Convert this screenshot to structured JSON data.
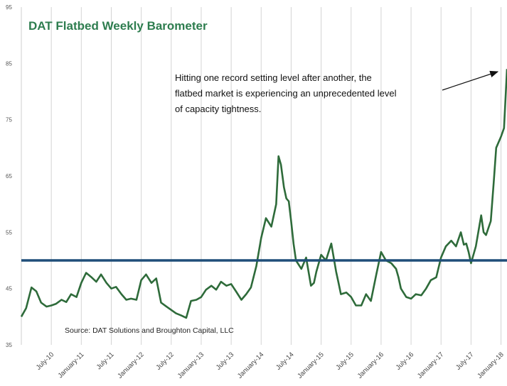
{
  "chart_data": {
    "type": "line",
    "title": "DAT Flatbed Weekly Barometer",
    "xlabel": "",
    "ylabel": "",
    "ylim": [
      35,
      95
    ],
    "yticks": [
      35,
      45,
      55,
      65,
      75,
      85,
      95
    ],
    "grid": "vertical",
    "categories": [
      "July-10",
      "January-11",
      "July-11",
      "January-12",
      "July-12",
      "January-13",
      "July-13",
      "January-14",
      "July-14",
      "January-15",
      "July-15",
      "January-16",
      "July-16",
      "January-17",
      "July-17",
      "January-18"
    ],
    "reference_line": {
      "value": 50,
      "color": "#1f4e79"
    },
    "series": [
      {
        "color": "#2e6b3a",
        "x": [
          2010.0,
          2010.08,
          2010.17,
          2010.25,
          2010.33,
          2010.42,
          2010.5,
          2010.58,
          2010.67,
          2010.75,
          2010.83,
          2010.92,
          2011.0,
          2011.08,
          2011.17,
          2011.25,
          2011.33,
          2011.42,
          2011.5,
          2011.58,
          2011.67,
          2011.75,
          2011.83,
          2011.92,
          2012.0,
          2012.08,
          2012.17,
          2012.25,
          2012.33,
          2012.42,
          2012.5,
          2012.58,
          2012.67,
          2012.75,
          2012.83,
          2012.92,
          2013.0,
          2013.08,
          2013.17,
          2013.25,
          2013.33,
          2013.42,
          2013.5,
          2013.58,
          2013.67,
          2013.75,
          2013.83,
          2013.92,
          2014.0,
          2014.08,
          2014.17,
          2014.25,
          2014.29,
          2014.33,
          2014.38,
          2014.42,
          2014.46,
          2014.5,
          2014.54,
          2014.58,
          2014.67,
          2014.75,
          2014.83,
          2014.88,
          2014.92,
          2015.0,
          2015.08,
          2015.17,
          2015.25,
          2015.29,
          2015.33,
          2015.42,
          2015.5,
          2015.58,
          2015.67,
          2015.75,
          2015.83,
          2015.92,
          2016.0,
          2016.08,
          2016.17,
          2016.25,
          2016.29,
          2016.33,
          2016.42,
          2016.5,
          2016.58,
          2016.67,
          2016.75,
          2016.83,
          2016.92,
          2017.0,
          2017.08,
          2017.17,
          2017.25,
          2017.33,
          2017.38,
          2017.42,
          2017.46,
          2017.5,
          2017.58,
          2017.67,
          2017.71,
          2017.75,
          2017.83,
          2017.88,
          2017.92,
          2018.0,
          2018.05,
          2018.1
        ],
        "y": [
          40.0,
          41.5,
          45.2,
          44.5,
          42.5,
          41.8,
          42.0,
          42.3,
          43.0,
          42.6,
          44.0,
          43.5,
          46.0,
          47.8,
          47.0,
          46.2,
          47.5,
          46.0,
          45.0,
          45.3,
          44.0,
          43.0,
          43.2,
          43.0,
          46.5,
          47.5,
          46.0,
          46.8,
          42.5,
          41.8,
          41.2,
          40.6,
          40.2,
          39.8,
          42.8,
          43.0,
          43.5,
          44.8,
          45.5,
          44.8,
          46.2,
          45.5,
          45.8,
          44.5,
          43.0,
          44.0,
          45.2,
          49.0,
          54.0,
          57.5,
          56.0,
          60.0,
          68.5,
          67.0,
          63.0,
          61.0,
          60.5,
          57.0,
          53.0,
          50.0,
          48.5,
          50.5,
          45.5,
          46.0,
          48.0,
          51.0,
          50.0,
          53.0,
          48.0,
          46.0,
          44.0,
          44.3,
          43.5,
          42.0,
          42.0,
          44.0,
          42.8,
          47.5,
          51.5,
          50.0,
          49.5,
          48.5,
          47.0,
          45.0,
          43.5,
          43.2,
          44.0,
          43.8,
          45.0,
          46.5,
          47.0,
          50.5,
          52.5,
          53.5,
          52.5,
          55.0,
          52.8,
          53.0,
          51.5,
          49.5,
          52.5,
          58.0,
          55.0,
          54.5,
          57.0,
          64.0,
          70.0,
          72.0,
          73.5,
          84.0
        ]
      }
    ],
    "annotation": {
      "lines": [
        "Hitting one record setting level after another, the",
        "flatbed market is experiencing an unprecedented level",
        "of capacity tightness."
      ]
    },
    "source": "Source: DAT Solutions and Broughton Capital, LLC"
  }
}
